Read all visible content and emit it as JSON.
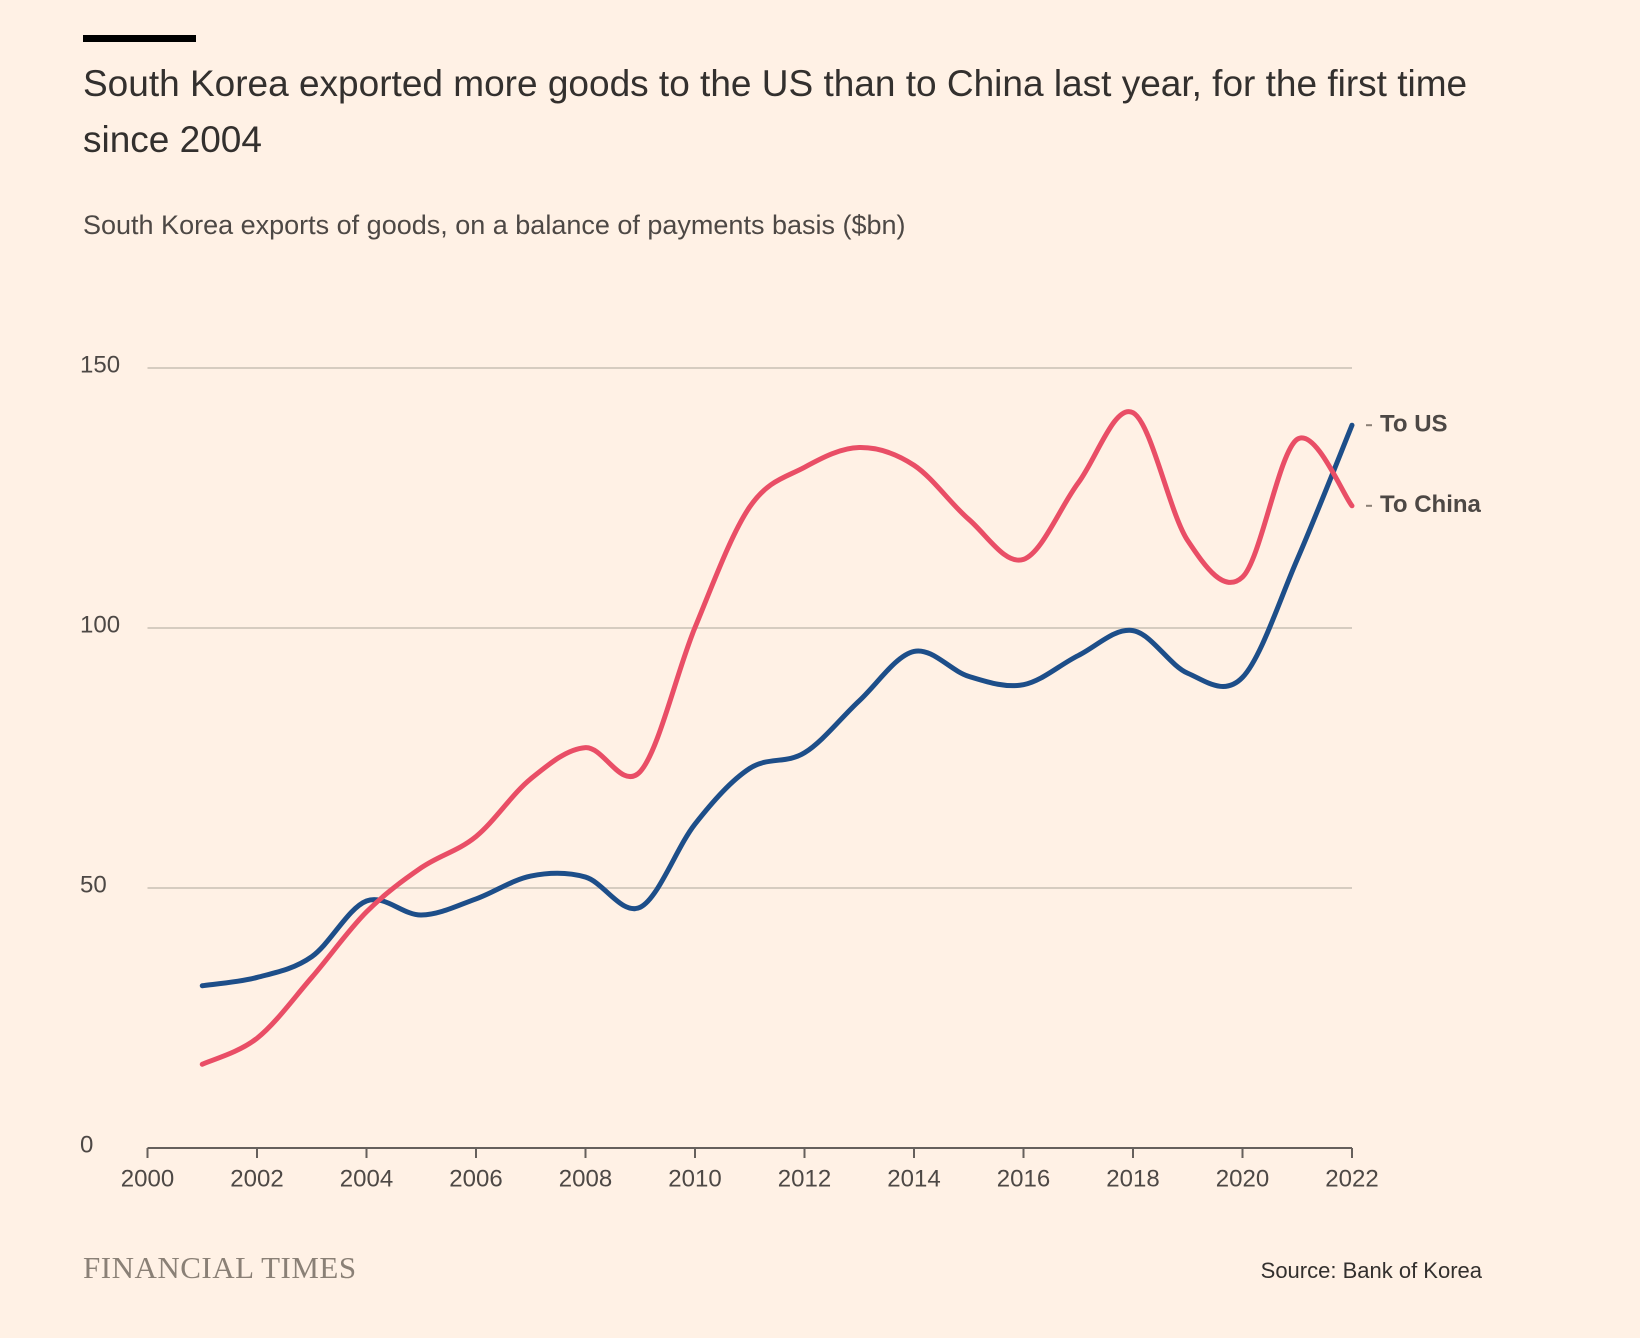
{
  "chart_data": {
    "type": "line",
    "title": "South Korea exported more goods to the US than to China last year, for the first time since 2004",
    "subtitle": "South Korea exports of goods, on a balance of payments basis ($bn)",
    "x": [
      2001,
      2002,
      2003,
      2004,
      2005,
      2006,
      2007,
      2008,
      2009,
      2010,
      2011,
      2012,
      2013,
      2014,
      2015,
      2016,
      2017,
      2018,
      2019,
      2020,
      2021,
      2022
    ],
    "series": [
      {
        "name": "To US",
        "color": "#1d4e89",
        "values": [
          31.2,
          32.8,
          36.8,
          47.5,
          44.8,
          47.9,
          52.3,
          52.1,
          46.3,
          62.3,
          73,
          76,
          86,
          95.5,
          90.7,
          89.1,
          94.7,
          99.5,
          91.3,
          90.5,
          113.2,
          139
        ]
      },
      {
        "name": "To China",
        "color": "#e94e66",
        "values": [
          16.1,
          21.1,
          32.8,
          45.4,
          53.9,
          59.9,
          71,
          77,
          72.4,
          100.1,
          123.3,
          130.9,
          134.7,
          131.3,
          120.9,
          113.2,
          127.9,
          141.4,
          116.8,
          109.8,
          136.3,
          123.5
        ]
      }
    ],
    "xlim": [
      2000,
      2022
    ],
    "xticks": [
      2000,
      2002,
      2004,
      2006,
      2008,
      2010,
      2012,
      2014,
      2016,
      2018,
      2020,
      2022
    ],
    "ylim": [
      0,
      150
    ],
    "yticks": [
      0,
      50,
      100,
      150
    ],
    "grid": true,
    "source": "Source: Bank of Korea",
    "publisher": "FINANCIAL TIMES"
  }
}
